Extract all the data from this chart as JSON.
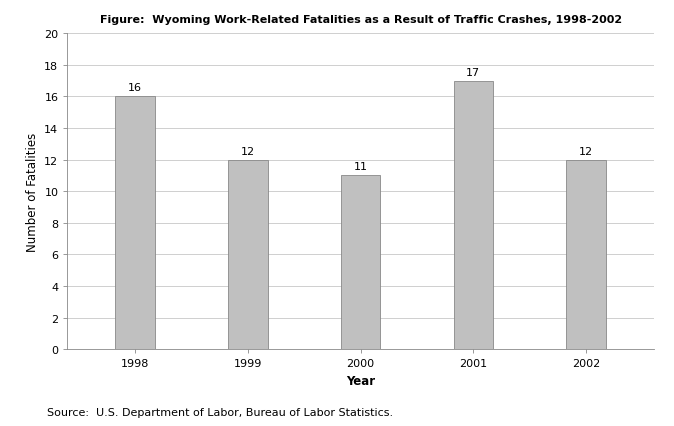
{
  "title": "Figure:  Wyoming Work-Related Fatalities as a Result of Traffic Crashes, 1998-2002",
  "xlabel": "Year",
  "ylabel": "Number of Fatalities",
  "source_text": "Source:  U.S. Department of Labor, Bureau of Labor Statistics.",
  "categories": [
    "1998",
    "1999",
    "2000",
    "2001",
    "2002"
  ],
  "values": [
    16,
    12,
    11,
    17,
    12
  ],
  "bar_color": "#c0c0c0",
  "bar_edgecolor": "#888888",
  "ylim": [
    0,
    20
  ],
  "yticks": [
    0,
    2,
    4,
    6,
    8,
    10,
    12,
    14,
    16,
    18,
    20
  ],
  "title_fontsize": 8,
  "axis_label_fontsize": 8.5,
  "tick_fontsize": 8,
  "annotation_fontsize": 8,
  "source_fontsize": 8,
  "background_color": "#ffffff",
  "grid_color": "#c8c8c8",
  "bar_width": 0.35
}
